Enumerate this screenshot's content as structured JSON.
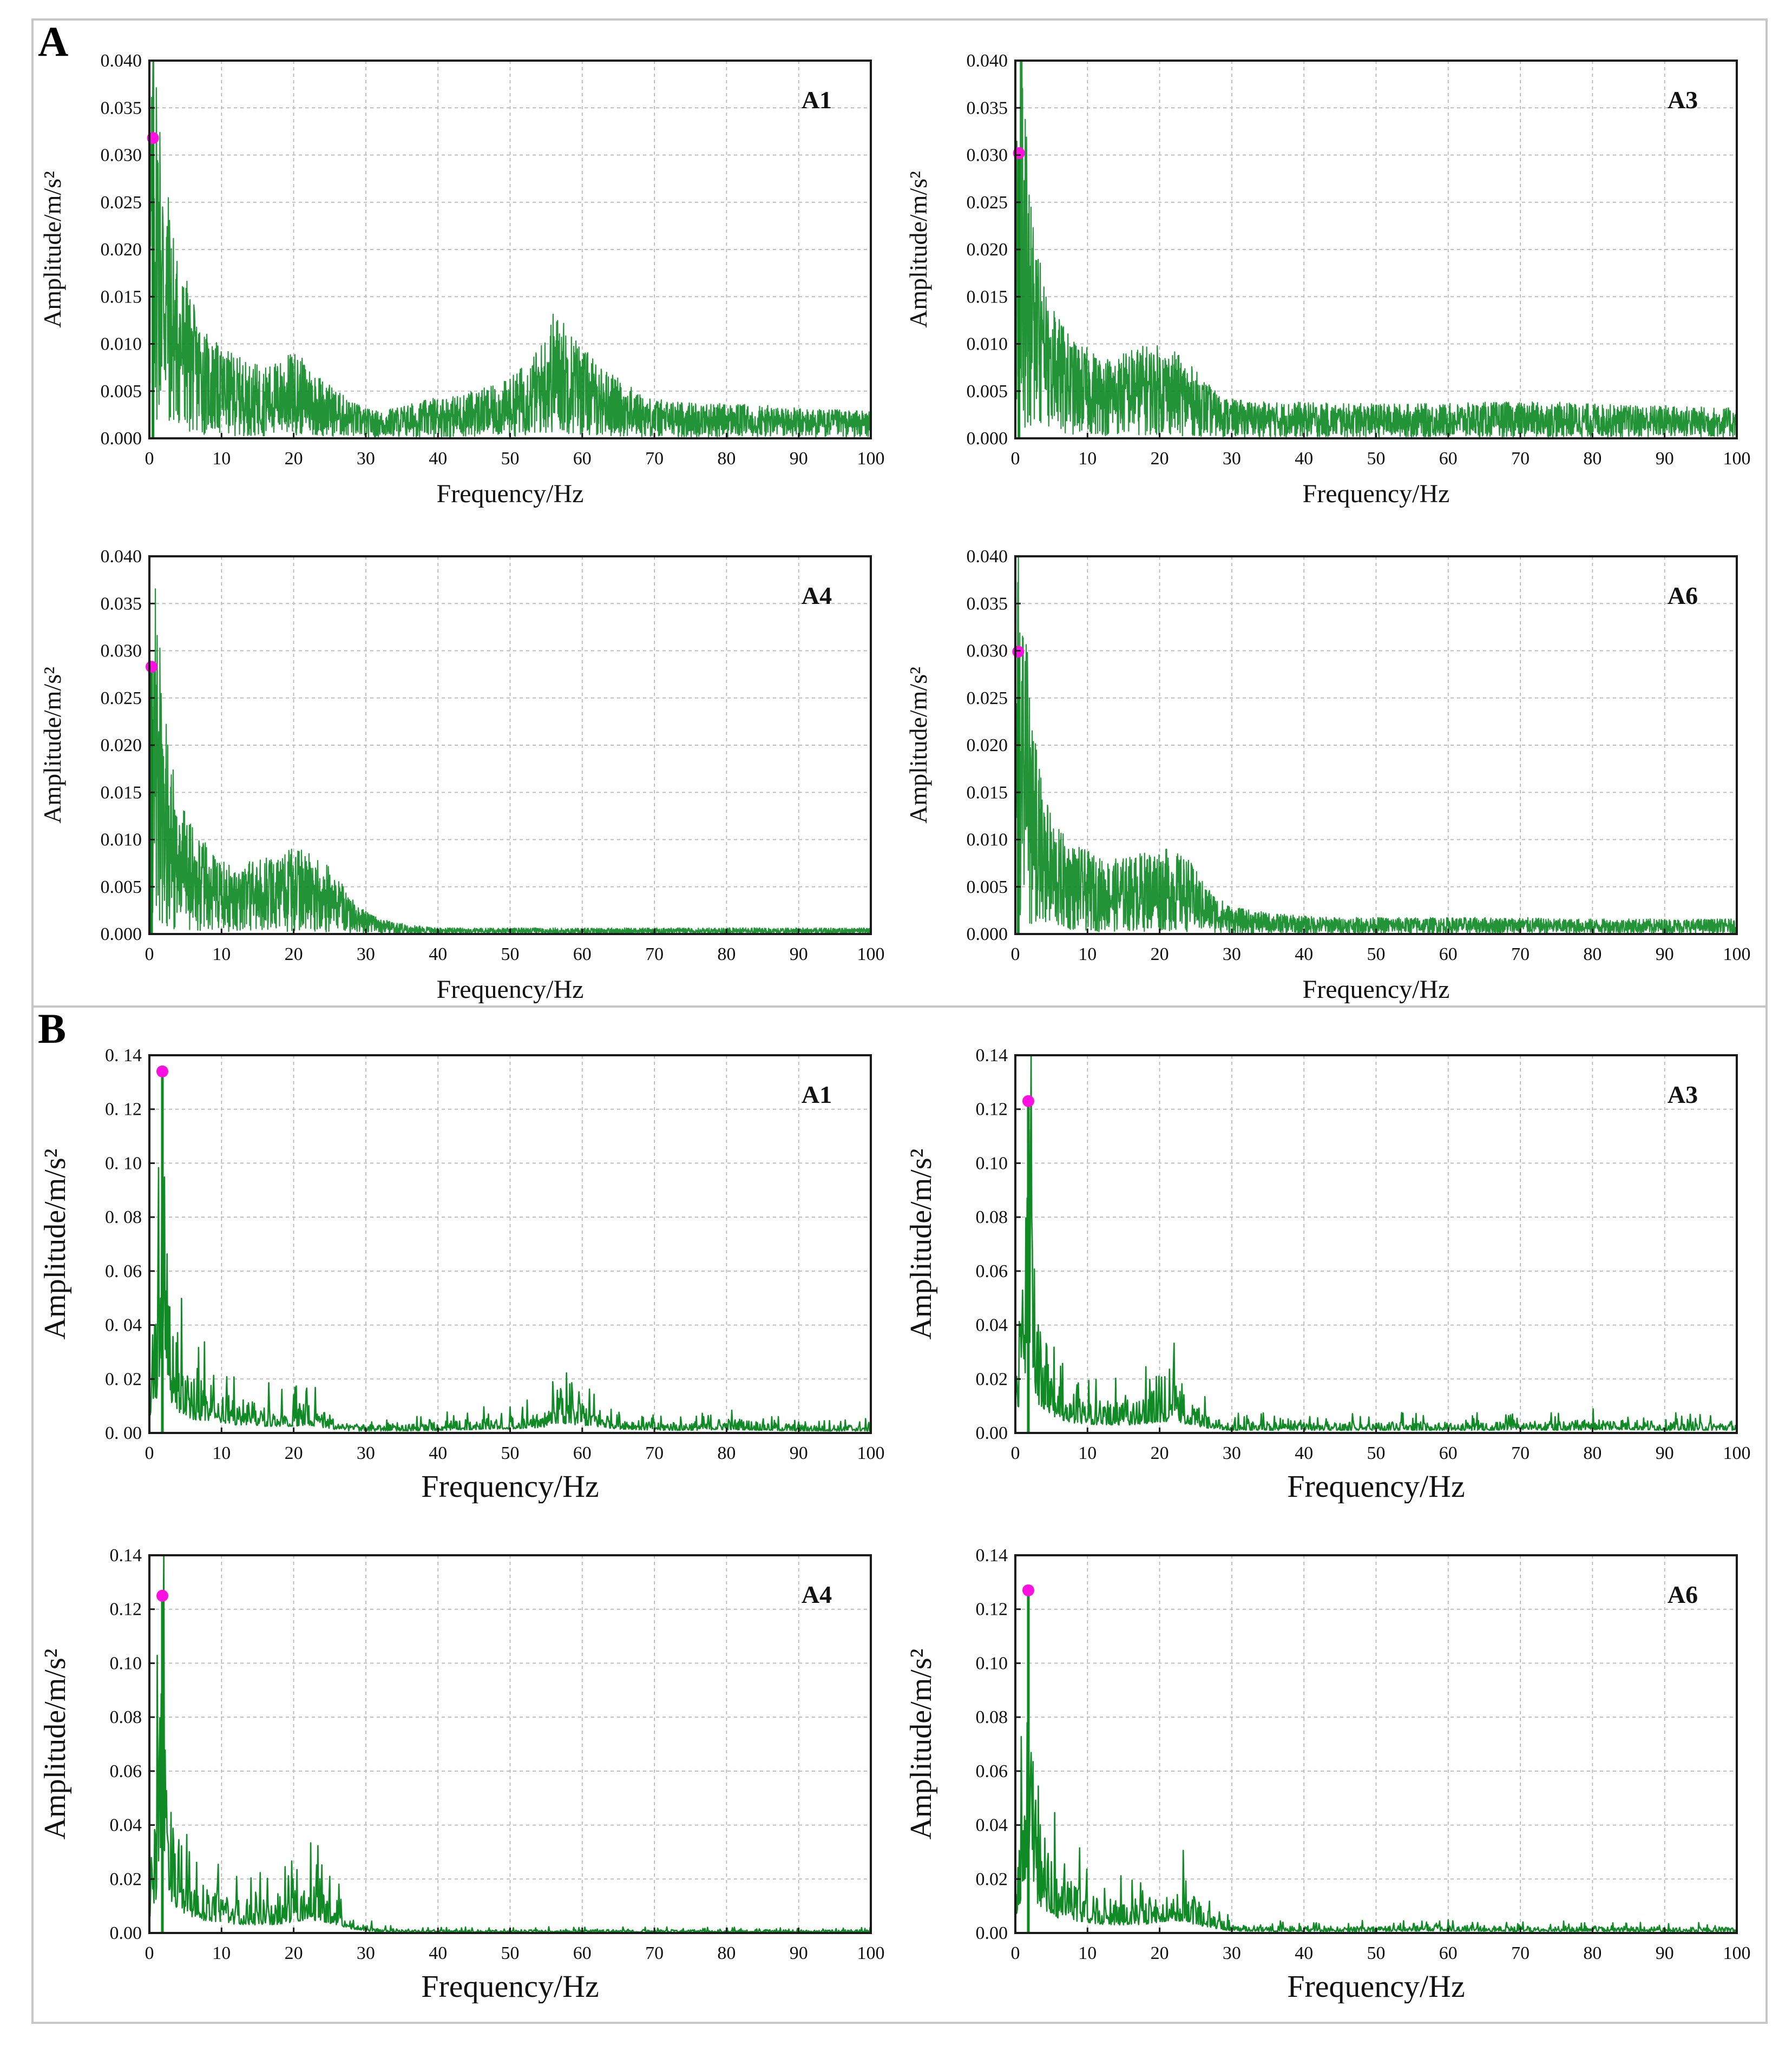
{
  "section_labels": {
    "a": "A",
    "b": "B"
  },
  "colors": {
    "line": "#0f8a25",
    "peak": "#ff10e0",
    "grid": "#bdbdbd",
    "frame": "#1a1a1a"
  },
  "chart_data": [
    {
      "id": "A-A1",
      "section": "A",
      "type": "line",
      "title": "A1",
      "xlabel": "Frequency/Hz",
      "ylabel": "Amplitude/m/s²",
      "xlim": [
        0,
        100
      ],
      "ylim": [
        0,
        0.04
      ],
      "xticks": [
        0,
        10,
        20,
        30,
        40,
        50,
        60,
        70,
        80,
        90,
        100
      ],
      "xtick_labels": [
        "0",
        "10",
        "20",
        "30",
        "40",
        "50",
        "60",
        "70",
        "80",
        "90",
        "100"
      ],
      "yticks": [
        0,
        0.005,
        0.01,
        0.015,
        0.02,
        0.025,
        0.03,
        0.035,
        0.04
      ],
      "ytick_labels": [
        "0.000",
        "0.005",
        "0.010",
        "0.015",
        "0.020",
        "0.025",
        "0.030",
        "0.035",
        "0.040"
      ],
      "series": [
        {
          "name": "spectrum",
          "x": [
            0,
            0.5,
            1,
            2,
            3,
            4,
            5,
            6,
            8,
            10,
            12,
            14,
            16,
            18,
            20,
            22,
            24,
            26,
            28,
            30,
            32,
            35,
            38,
            40,
            42,
            45,
            48,
            50,
            52,
            54,
            55,
            56,
            57,
            58,
            60,
            62,
            65,
            68,
            70,
            75,
            80,
            85,
            90,
            95,
            100
          ],
          "y": [
            0.021,
            0.03,
            0.026,
            0.019,
            0.015,
            0.012,
            0.011,
            0.009,
            0.007,
            0.006,
            0.0055,
            0.005,
            0.0048,
            0.0052,
            0.0058,
            0.005,
            0.004,
            0.0032,
            0.0025,
            0.002,
            0.0018,
            0.0022,
            0.0025,
            0.0028,
            0.0028,
            0.0032,
            0.0035,
            0.004,
            0.005,
            0.006,
            0.0072,
            0.0085,
            0.0082,
            0.0075,
            0.0062,
            0.005,
            0.004,
            0.003,
            0.0026,
            0.0024,
            0.0023,
            0.0022,
            0.002,
            0.0019,
            0.0018
          ]
        }
      ],
      "peak": {
        "x": 0.5,
        "y": 0.0318
      }
    },
    {
      "id": "A-A3",
      "section": "A",
      "type": "line",
      "title": "A3",
      "xlabel": "Frequency/Hz",
      "ylabel": "Amplitude/m/s²",
      "xlim": [
        0,
        100
      ],
      "ylim": [
        0,
        0.04
      ],
      "xticks": [
        0,
        10,
        20,
        30,
        40,
        50,
        60,
        70,
        80,
        90,
        100
      ],
      "xtick_labels": [
        "0",
        "10",
        "20",
        "30",
        "40",
        "50",
        "60",
        "70",
        "80",
        "90",
        "100"
      ],
      "yticks": [
        0,
        0.005,
        0.01,
        0.015,
        0.02,
        0.025,
        0.03,
        0.035,
        0.04
      ],
      "ytick_labels": [
        "0.000",
        "0.005",
        "0.010",
        "0.015",
        "0.020",
        "0.025",
        "0.030",
        "0.035",
        "0.040"
      ],
      "series": [
        {
          "name": "spectrum",
          "x": [
            0,
            0.5,
            1,
            2,
            3,
            4,
            5,
            6,
            8,
            10,
            12,
            14,
            16,
            18,
            20,
            22,
            24,
            26,
            28,
            30,
            35,
            40,
            45,
            50,
            55,
            60,
            65,
            70,
            75,
            80,
            85,
            90,
            95,
            100
          ],
          "y": [
            0.02,
            0.029,
            0.025,
            0.017,
            0.013,
            0.01,
            0.009,
            0.008,
            0.0065,
            0.006,
            0.0055,
            0.0055,
            0.006,
            0.0062,
            0.0062,
            0.0058,
            0.005,
            0.004,
            0.003,
            0.0026,
            0.0024,
            0.0024,
            0.0023,
            0.0023,
            0.0023,
            0.0023,
            0.0024,
            0.0024,
            0.0024,
            0.0023,
            0.0022,
            0.0022,
            0.0021,
            0.002
          ]
        }
      ],
      "peak": {
        "x": 0.5,
        "y": 0.0302
      }
    },
    {
      "id": "A-A4",
      "section": "A",
      "type": "line",
      "title": "A4",
      "xlabel": "Frequency/Hz",
      "ylabel": "Amplitude/m/s²",
      "xlim": [
        0,
        100
      ],
      "ylim": [
        0,
        0.04
      ],
      "xticks": [
        0,
        10,
        20,
        30,
        40,
        50,
        60,
        70,
        80,
        90,
        100
      ],
      "xtick_labels": [
        "0",
        "10",
        "20",
        "30",
        "40",
        "50",
        "60",
        "70",
        "80",
        "90",
        "100"
      ],
      "yticks": [
        0,
        0.005,
        0.01,
        0.015,
        0.02,
        0.025,
        0.03,
        0.035,
        0.04
      ],
      "ytick_labels": [
        "0.000",
        "0.005",
        "0.010",
        "0.015",
        "0.020",
        "0.025",
        "0.030",
        "0.035",
        "0.040"
      ],
      "series": [
        {
          "name": "spectrum",
          "x": [
            0,
            0.5,
            1,
            2,
            3,
            4,
            5,
            6,
            8,
            10,
            12,
            14,
            16,
            18,
            20,
            22,
            24,
            26,
            28,
            30,
            32,
            35,
            38,
            40,
            45,
            50,
            60,
            70,
            80,
            90,
            100
          ],
          "y": [
            0.02,
            0.027,
            0.023,
            0.016,
            0.012,
            0.009,
            0.008,
            0.007,
            0.006,
            0.005,
            0.0048,
            0.0048,
            0.005,
            0.0055,
            0.0058,
            0.0055,
            0.005,
            0.0038,
            0.0025,
            0.0015,
            0.001,
            0.0007,
            0.0005,
            0.0004,
            0.0004,
            0.0004,
            0.0004,
            0.0004,
            0.0004,
            0.0004,
            0.0004
          ]
        }
      ],
      "peak": {
        "x": 0.3,
        "y": 0.0283
      }
    },
    {
      "id": "A-A6",
      "section": "A",
      "type": "line",
      "title": "A6",
      "xlabel": "Frequency/Hz",
      "ylabel": "Amplitude/m/s²",
      "xlim": [
        0,
        100
      ],
      "ylim": [
        0,
        0.04
      ],
      "xticks": [
        0,
        10,
        20,
        30,
        40,
        50,
        60,
        70,
        80,
        90,
        100
      ],
      "xtick_labels": [
        "0",
        "10",
        "20",
        "30",
        "40",
        "50",
        "60",
        "70",
        "80",
        "90",
        "100"
      ],
      "yticks": [
        0,
        0.005,
        0.01,
        0.015,
        0.02,
        0.025,
        0.03,
        0.035,
        0.04
      ],
      "ytick_labels": [
        "0.000",
        "0.005",
        "0.010",
        "0.015",
        "0.020",
        "0.025",
        "0.030",
        "0.035",
        "0.040"
      ],
      "series": [
        {
          "name": "spectrum",
          "x": [
            0,
            0.5,
            1,
            2,
            3,
            4,
            5,
            6,
            8,
            10,
            12,
            14,
            16,
            18,
            20,
            22,
            24,
            26,
            28,
            30,
            35,
            40,
            45,
            50,
            55,
            60,
            65,
            70,
            75,
            80,
            85,
            90,
            95,
            100
          ],
          "y": [
            0.02,
            0.029,
            0.024,
            0.016,
            0.012,
            0.009,
            0.008,
            0.007,
            0.006,
            0.0055,
            0.005,
            0.005,
            0.0052,
            0.0055,
            0.0058,
            0.0055,
            0.005,
            0.0035,
            0.0025,
            0.0018,
            0.0014,
            0.0012,
            0.0011,
            0.0011,
            0.0011,
            0.0011,
            0.0011,
            0.0011,
            0.001,
            0.001,
            0.001,
            0.001,
            0.001,
            0.001
          ]
        }
      ],
      "peak": {
        "x": 0.4,
        "y": 0.0299
      }
    },
    {
      "id": "B-A1",
      "section": "B",
      "type": "line",
      "title": "A1",
      "xlabel": "Frequency/Hz",
      "ylabel": "Amplitude/m/s²",
      "xlim": [
        0,
        100
      ],
      "ylim": [
        0,
        0.14
      ],
      "xticks": [
        0,
        10,
        20,
        30,
        40,
        50,
        60,
        70,
        80,
        90,
        100
      ],
      "xtick_labels": [
        "0",
        "10",
        "20",
        "30",
        "40",
        "50",
        "60",
        "70",
        "80",
        "90",
        "100"
      ],
      "yticks": [
        0,
        0.02,
        0.04,
        0.06,
        0.08,
        0.1,
        0.12,
        0.14
      ],
      "ytick_labels": [
        "0. 00",
        "0. 02",
        "0. 04",
        "0. 06",
        "0. 08",
        "0. 10",
        "0. 12",
        "0. 14"
      ],
      "series": [
        {
          "name": "spectrum",
          "x": [
            0,
            0.5,
            1,
            1.5,
            2,
            3,
            4,
            5,
            6,
            8,
            10,
            12,
            14,
            16,
            18,
            20,
            22,
            24,
            26,
            28,
            30,
            35,
            40,
            45,
            50,
            55,
            56,
            58,
            60,
            62,
            65,
            70,
            75,
            80,
            85,
            90,
            95,
            100
          ],
          "y": [
            0.02,
            0.045,
            0.05,
            0.08,
            0.12,
            0.045,
            0.03,
            0.025,
            0.02,
            0.018,
            0.015,
            0.012,
            0.012,
            0.01,
            0.01,
            0.01,
            0.012,
            0.008,
            0.005,
            0.003,
            0.003,
            0.003,
            0.004,
            0.005,
            0.006,
            0.008,
            0.015,
            0.012,
            0.012,
            0.009,
            0.006,
            0.004,
            0.004,
            0.005,
            0.004,
            0.003,
            0.003,
            0.003
          ]
        }
      ],
      "peak": {
        "x": 1.8,
        "y": 0.134
      }
    },
    {
      "id": "B-A3",
      "section": "B",
      "type": "line",
      "title": "A3",
      "xlabel": "Frequency/Hz",
      "ylabel": "Amplitude/m/s²",
      "xlim": [
        0,
        100
      ],
      "ylim": [
        0,
        0.14
      ],
      "xticks": [
        0,
        10,
        20,
        30,
        40,
        50,
        60,
        70,
        80,
        90,
        100
      ],
      "xtick_labels": [
        "0",
        "10",
        "20",
        "30",
        "40",
        "50",
        "60",
        "70",
        "80",
        "90",
        "100"
      ],
      "yticks": [
        0,
        0.02,
        0.04,
        0.06,
        0.08,
        0.1,
        0.12,
        0.14
      ],
      "ytick_labels": [
        "0.00",
        "0.02",
        "0.04",
        "0.06",
        "0.08",
        "0.10",
        "0.12",
        "0.14"
      ],
      "series": [
        {
          "name": "spectrum",
          "x": [
            0,
            0.5,
            1,
            1.5,
            2,
            3,
            4,
            5,
            6,
            8,
            10,
            12,
            14,
            16,
            18,
            20,
            22,
            24,
            26,
            28,
            30,
            35,
            40,
            45,
            50,
            55,
            60,
            65,
            70,
            75,
            80,
            85,
            90,
            95,
            100
          ],
          "y": [
            0.02,
            0.04,
            0.055,
            0.1,
            0.115,
            0.045,
            0.035,
            0.025,
            0.02,
            0.015,
            0.013,
            0.012,
            0.012,
            0.012,
            0.014,
            0.016,
            0.018,
            0.012,
            0.008,
            0.005,
            0.004,
            0.004,
            0.004,
            0.004,
            0.004,
            0.004,
            0.004,
            0.004,
            0.005,
            0.004,
            0.005,
            0.005,
            0.004,
            0.004,
            0.004
          ]
        }
      ],
      "peak": {
        "x": 1.8,
        "y": 0.123
      }
    },
    {
      "id": "B-A4",
      "section": "B",
      "type": "line",
      "title": "A4",
      "xlabel": "Frequency/Hz",
      "ylabel": "Amplitude/m/s²",
      "xlim": [
        0,
        100
      ],
      "ylim": [
        0,
        0.14
      ],
      "xticks": [
        0,
        10,
        20,
        30,
        40,
        50,
        60,
        70,
        80,
        90,
        100
      ],
      "xtick_labels": [
        "0",
        "10",
        "20",
        "30",
        "40",
        "50",
        "60",
        "70",
        "80",
        "90",
        "100"
      ],
      "yticks": [
        0,
        0.02,
        0.04,
        0.06,
        0.08,
        0.1,
        0.12,
        0.14
      ],
      "ytick_labels": [
        "0.00",
        "0.02",
        "0.04",
        "0.06",
        "0.08",
        "0.10",
        "0.12",
        "0.14"
      ],
      "series": [
        {
          "name": "spectrum",
          "x": [
            0,
            0.5,
            1,
            1.5,
            2,
            3,
            4,
            5,
            6,
            8,
            10,
            12,
            14,
            16,
            18,
            20,
            22,
            24,
            26,
            28,
            30,
            32,
            35,
            40,
            50,
            60,
            70,
            80,
            90,
            100
          ],
          "y": [
            0.02,
            0.04,
            0.05,
            0.09,
            0.115,
            0.045,
            0.035,
            0.028,
            0.022,
            0.018,
            0.015,
            0.013,
            0.012,
            0.012,
            0.013,
            0.016,
            0.02,
            0.017,
            0.012,
            0.006,
            0.003,
            0.0018,
            0.0015,
            0.0012,
            0.0012,
            0.0012,
            0.0012,
            0.0012,
            0.0012,
            0.0012
          ]
        }
      ],
      "peak": {
        "x": 1.8,
        "y": 0.125
      }
    },
    {
      "id": "B-A6",
      "section": "B",
      "type": "line",
      "title": "A6",
      "xlabel": "Frequency/Hz",
      "ylabel": "Amplitude/m/s²",
      "xlim": [
        0,
        100
      ],
      "ylim": [
        0,
        0.14
      ],
      "xticks": [
        0,
        10,
        20,
        30,
        40,
        50,
        60,
        70,
        80,
        90,
        100
      ],
      "xtick_labels": [
        "0",
        "10",
        "20",
        "30",
        "40",
        "50",
        "60",
        "70",
        "80",
        "90",
        "100"
      ],
      "yticks": [
        0,
        0.02,
        0.04,
        0.06,
        0.08,
        0.1,
        0.12,
        0.14
      ],
      "ytick_labels": [
        "0.00",
        "0.02",
        "0.04",
        "0.06",
        "0.08",
        "0.10",
        "0.12",
        "0.14"
      ],
      "series": [
        {
          "name": "spectrum",
          "x": [
            0,
            0.5,
            1,
            1.5,
            2,
            3,
            4,
            5,
            6,
            8,
            10,
            12,
            14,
            16,
            18,
            20,
            22,
            24,
            26,
            28,
            30,
            35,
            40,
            50,
            60,
            70,
            80,
            90,
            100
          ],
          "y": [
            0.02,
            0.04,
            0.05,
            0.09,
            0.115,
            0.045,
            0.035,
            0.027,
            0.022,
            0.018,
            0.015,
            0.013,
            0.012,
            0.012,
            0.013,
            0.016,
            0.019,
            0.015,
            0.01,
            0.006,
            0.003,
            0.0025,
            0.0025,
            0.0025,
            0.003,
            0.0025,
            0.0025,
            0.0022,
            0.002
          ]
        }
      ],
      "peak": {
        "x": 1.8,
        "y": 0.127
      }
    }
  ]
}
